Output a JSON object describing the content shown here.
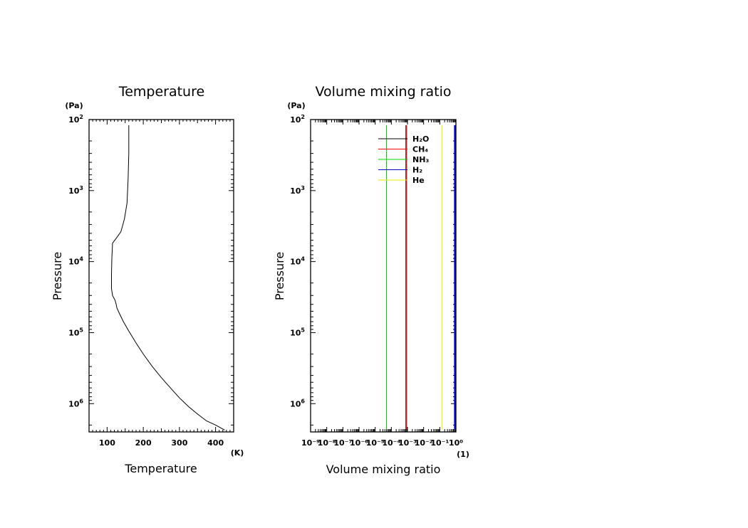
{
  "chart_data": [
    {
      "type": "line",
      "title": "Temperature",
      "xlabel": "Temperature",
      "ylabel": "Pressure",
      "x_unit": "(K)",
      "y_unit": "(Pa)",
      "xlim": [
        50,
        450
      ],
      "ylim": [
        100,
        2500000
      ],
      "yscale": "log",
      "y_inverted": true,
      "x_tick_labels": [
        "100",
        "200",
        "300",
        "400"
      ],
      "x_ticks": [
        100,
        200,
        300,
        400
      ],
      "y_ticks": [
        100,
        1000,
        10000,
        100000,
        1000000
      ],
      "y_tick_labels": [
        {
          "base": "10",
          "exp": "2"
        },
        {
          "base": "10",
          "exp": "3"
        },
        {
          "base": "10",
          "exp": "4"
        },
        {
          "base": "10",
          "exp": "5"
        },
        {
          "base": "10",
          "exp": "6"
        }
      ],
      "series": [
        {
          "color": "#000000",
          "points": [
            [
              160,
              120
            ],
            [
              160,
              300
            ],
            [
              158,
              700
            ],
            [
              155,
              1500
            ],
            [
              148,
              2500
            ],
            [
              138,
              3800
            ],
            [
              125,
              4700
            ],
            [
              115,
              5500
            ],
            [
              113,
              9000
            ],
            [
              112,
              15000
            ],
            [
              112,
              24000
            ],
            [
              115,
              30000
            ],
            [
              122,
              35000
            ],
            [
              125,
              40000
            ],
            [
              127,
              45000
            ],
            [
              135,
              55000
            ],
            [
              145,
              70000
            ],
            [
              160,
              95000
            ],
            [
              180,
              140000
            ],
            [
              200,
              200000
            ],
            [
              225,
              300000
            ],
            [
              250,
              430000
            ],
            [
              275,
              600000
            ],
            [
              300,
              830000
            ],
            [
              325,
              1100000
            ],
            [
              350,
              1400000
            ],
            [
              375,
              1750000
            ],
            [
              400,
              2000000
            ],
            [
              425,
              2350000
            ]
          ]
        }
      ]
    },
    {
      "type": "line",
      "title": "Volume mixing ratio",
      "xlabel": "Volume mixing ratio",
      "ylabel": "Pressure",
      "x_unit": "(1)",
      "y_unit": "(Pa)",
      "xscale": "log",
      "xlim": [
        1e-09,
        1
      ],
      "ylim": [
        100,
        2500000
      ],
      "yscale": "log",
      "y_inverted": true,
      "x_ticks": [
        1e-09,
        1e-08,
        1e-07,
        1e-06,
        1e-05,
        0.0001,
        0.001,
        0.01,
        0.1,
        1
      ],
      "x_tick_labels": [
        "10⁻⁹",
        "10⁻⁸",
        "10⁻⁷",
        "10⁻⁶",
        "10⁻⁵",
        "10⁻⁴",
        "10⁻³",
        "10⁻²",
        "10⁻¹",
        "10⁰"
      ],
      "y_ticks": [
        100,
        1000,
        10000,
        100000,
        1000000
      ],
      "y_tick_labels": [
        {
          "base": "10",
          "exp": "2"
        },
        {
          "base": "10",
          "exp": "3"
        },
        {
          "base": "10",
          "exp": "4"
        },
        {
          "base": "10",
          "exp": "5"
        },
        {
          "base": "10",
          "exp": "6"
        }
      ],
      "legend": "top-right",
      "series": [
        {
          "name": "H₂O",
          "color": "#000000",
          "value": 0.0008
        },
        {
          "name": "CH₄",
          "color": "#ff0000",
          "value": 0.0009
        },
        {
          "name": "NH₃",
          "color": "#00d000",
          "value": 5e-05
        },
        {
          "name": "H₂",
          "color": "#0000c8",
          "value": 0.86
        },
        {
          "name": "He",
          "color": "#e8e800",
          "value": 0.135
        }
      ],
      "p_range": [
        120,
        2300000
      ]
    }
  ]
}
